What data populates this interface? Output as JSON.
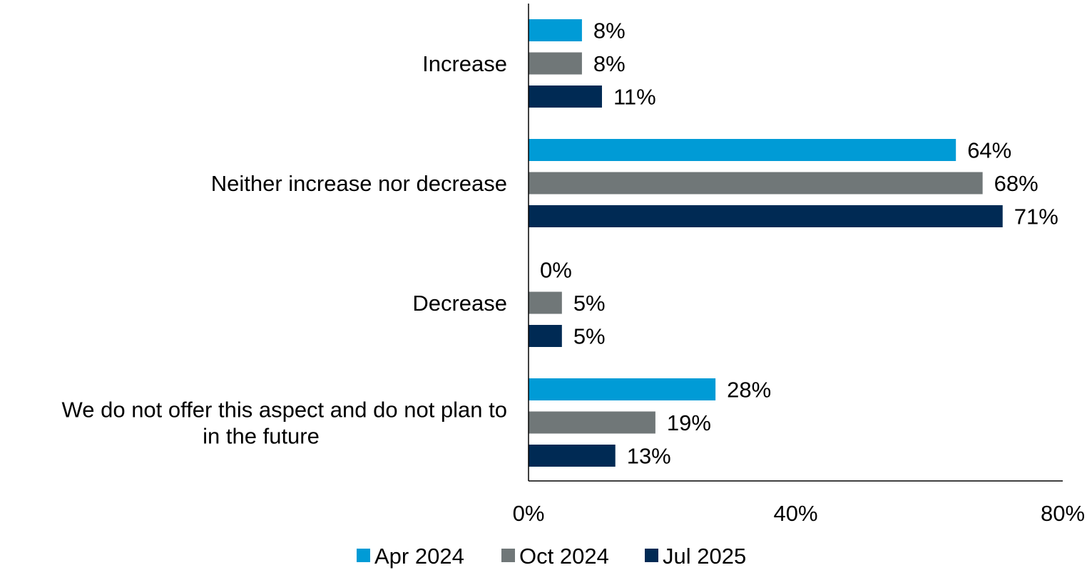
{
  "chart_data": {
    "type": "bar",
    "orientation": "horizontal",
    "categories": [
      [
        "Increase"
      ],
      [
        "Neither increase nor decrease"
      ],
      [
        "Decrease"
      ],
      [
        "We do not offer this aspect and do not plan to",
        "in the future"
      ]
    ],
    "series": [
      {
        "name": "Apr 2024",
        "color": "#009bd6",
        "values": [
          8,
          64,
          0,
          28
        ]
      },
      {
        "name": "Oct 2024",
        "color": "#707778",
        "values": [
          8,
          68,
          5,
          19
        ]
      },
      {
        "name": "Jul 2025",
        "color": "#002a54",
        "values": [
          11,
          71,
          5,
          13
        ]
      }
    ],
    "value_suffix": "%",
    "xlim": [
      0,
      80
    ],
    "xticks": [
      0,
      40,
      80
    ],
    "xtick_labels": [
      "0%",
      "40%",
      "80%"
    ],
    "grid": false,
    "legend_position": "bottom"
  }
}
